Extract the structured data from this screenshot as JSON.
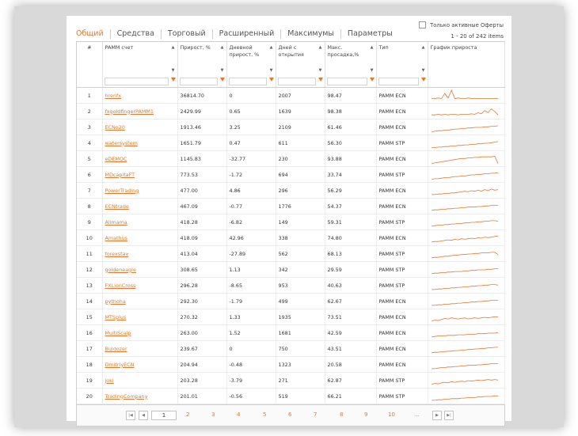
{
  "tabs": [
    "Общий",
    "Средства",
    "Торговый",
    "Расширенный",
    "Максимумы",
    "Параметры"
  ],
  "active_tab": 0,
  "only_active_label": "Только активные Оферты",
  "items_count": "1 - 20 of 242 items",
  "columns": [
    {
      "label": "#"
    },
    {
      "label": "PAMM счет"
    },
    {
      "label": "Прирост, %"
    },
    {
      "label": "Дневной прирост, %"
    },
    {
      "label": "Дней с открытия"
    },
    {
      "label": "Макс. просадка,%"
    },
    {
      "label": "Тип"
    },
    {
      "label": "График прироста"
    }
  ],
  "rows": [
    {
      "n": "1",
      "name": "hrenfx",
      "growth": "36814.70",
      "daily": "0",
      "days": "2007",
      "dd": "98.47",
      "type": "PAMM ECN",
      "spark": [
        5,
        5,
        6,
        5,
        14,
        6,
        20,
        5,
        6,
        5,
        5,
        6,
        5,
        5,
        5,
        5,
        5,
        5,
        5,
        5,
        5
      ]
    },
    {
      "n": "2",
      "name": "fxgoldfingerPAMM1",
      "growth": "2429.99",
      "daily": "0.65",
      "days": "1639",
      "dd": "98.38",
      "type": "PAMM ECN",
      "spark": [
        4,
        4,
        5,
        4,
        5,
        4,
        5,
        5,
        4,
        5,
        5,
        5,
        6,
        5,
        8,
        6,
        12,
        8,
        15,
        10,
        4
      ]
    },
    {
      "n": "3",
      "name": "ECNo20",
      "growth": "1913.46",
      "daily": "3.25",
      "days": "2109",
      "dd": "61.46",
      "type": "PAMM ECN",
      "spark": [
        2,
        3,
        4,
        4,
        5,
        5,
        6,
        7,
        7,
        8,
        8,
        9,
        9,
        10,
        10,
        10,
        11,
        11,
        12,
        12,
        13
      ]
    },
    {
      "n": "4",
      "name": "watersystem",
      "growth": "1651.79",
      "daily": "0.47",
      "days": "611",
      "dd": "56.30",
      "type": "PAMM STP",
      "spark": [
        2,
        2,
        3,
        3,
        4,
        4,
        5,
        5,
        6,
        6,
        7,
        7,
        8,
        8,
        9,
        9,
        10,
        10,
        11,
        12,
        13
      ]
    },
    {
      "n": "5",
      "name": "eDEMOC",
      "growth": "1145.83",
      "daily": "-32.77",
      "days": "230",
      "dd": "93.88",
      "type": "PAMM ECN",
      "spark": [
        2,
        3,
        4,
        5,
        6,
        7,
        8,
        9,
        10,
        11,
        11,
        12,
        12,
        13,
        13,
        14,
        14,
        14,
        14,
        15,
        2
      ]
    },
    {
      "n": "6",
      "name": "MDcapitaFT",
      "growth": "773.53",
      "daily": "-1.72",
      "days": "694",
      "dd": "33.74",
      "type": "PAMM STP",
      "spark": [
        2,
        3,
        3,
        4,
        5,
        5,
        6,
        7,
        7,
        8,
        8,
        9,
        10,
        10,
        11,
        11,
        12,
        12,
        13,
        13,
        14
      ]
    },
    {
      "n": "7",
      "name": "PowerTrading",
      "growth": "477.00",
      "daily": "4.86",
      "days": "296",
      "dd": "56.29",
      "type": "PAMM ECN",
      "spark": [
        3,
        3,
        4,
        4,
        5,
        5,
        6,
        6,
        7,
        8,
        9,
        8,
        10,
        9,
        11,
        9,
        12,
        10,
        13,
        11,
        12
      ]
    },
    {
      "n": "8",
      "name": "ECNtrade",
      "growth": "467.09",
      "daily": "-0.77",
      "days": "1776",
      "dd": "54.37",
      "type": "PAMM ECN",
      "spark": [
        3,
        4,
        4,
        5,
        5,
        6,
        6,
        7,
        7,
        8,
        8,
        9,
        9,
        9,
        10,
        10,
        11,
        11,
        12,
        12,
        12
      ]
    },
    {
      "n": "9",
      "name": "Alimama",
      "growth": "418.28",
      "daily": "-6.82",
      "days": "149",
      "dd": "59.31",
      "type": "PAMM STP",
      "spark": [
        3,
        4,
        5,
        5,
        6,
        6,
        7,
        7,
        8,
        8,
        9,
        9,
        10,
        10,
        11,
        11,
        12,
        12,
        13,
        13,
        12
      ]
    },
    {
      "n": "10",
      "name": "Amathus",
      "growth": "418.09",
      "daily": "42.96",
      "days": "338",
      "dd": "74.80",
      "type": "PAMM ECN",
      "spark": [
        3,
        4,
        4,
        5,
        6,
        7,
        6,
        8,
        7,
        9,
        8,
        9,
        10,
        9,
        11,
        10,
        12,
        11,
        12,
        13,
        14
      ]
    },
    {
      "n": "11",
      "name": "forexstav",
      "growth": "413.04",
      "daily": "-27.89",
      "days": "562",
      "dd": "68.13",
      "type": "PAMM STP",
      "spark": [
        3,
        4,
        4,
        5,
        6,
        6,
        7,
        8,
        8,
        9,
        9,
        10,
        10,
        11,
        11,
        12,
        12,
        12,
        13,
        13,
        9
      ]
    },
    {
      "n": "12",
      "name": "goldeneagle",
      "growth": "308.65",
      "daily": "1.13",
      "days": "342",
      "dd": "29.59",
      "type": "PAMM STP",
      "spark": [
        3,
        4,
        4,
        5,
        5,
        6,
        6,
        7,
        7,
        7,
        8,
        8,
        9,
        9,
        10,
        10,
        10,
        11,
        11,
        12,
        12
      ]
    },
    {
      "n": "13",
      "name": "FXLionCross",
      "growth": "296.28",
      "daily": "-8.65",
      "days": "953",
      "dd": "40.63",
      "type": "PAMM STP",
      "spark": [
        3,
        3,
        4,
        4,
        5,
        5,
        6,
        6,
        7,
        7,
        8,
        8,
        9,
        9,
        10,
        10,
        11,
        11,
        12,
        12,
        11
      ]
    },
    {
      "n": "14",
      "name": "pythoha",
      "growth": "292.30",
      "daily": "-1.79",
      "days": "499",
      "dd": "62.67",
      "type": "PAMM ECN",
      "spark": [
        3,
        3,
        4,
        4,
        5,
        5,
        6,
        6,
        7,
        7,
        8,
        8,
        9,
        9,
        10,
        10,
        11,
        11,
        12,
        12,
        12
      ]
    },
    {
      "n": "15",
      "name": "MTSplus",
      "growth": "270.32",
      "daily": "1.33",
      "days": "1935",
      "dd": "73.51",
      "type": "PAMM ECN",
      "spark": [
        3,
        5,
        4,
        6,
        8,
        7,
        9,
        8,
        7,
        8,
        9,
        7,
        8,
        9,
        8,
        9,
        10,
        9,
        10,
        11,
        11
      ]
    },
    {
      "n": "16",
      "name": "MultiScalp",
      "growth": "263.00",
      "daily": "1.52",
      "days": "1681",
      "dd": "42.59",
      "type": "PAMM ECN",
      "spark": [
        3,
        4,
        5,
        5,
        5,
        6,
        6,
        6,
        7,
        7,
        7,
        8,
        8,
        8,
        9,
        9,
        9,
        10,
        10,
        10,
        11
      ]
    },
    {
      "n": "17",
      "name": "Buldozer",
      "growth": "239.67",
      "daily": "0",
      "days": "750",
      "dd": "43.51",
      "type": "PAMM ECN",
      "spark": [
        3,
        4,
        4,
        5,
        5,
        6,
        6,
        7,
        7,
        8,
        8,
        9,
        9,
        10,
        10,
        11,
        11,
        12,
        12,
        13,
        13
      ]
    },
    {
      "n": "18",
      "name": "DmitriyECN",
      "growth": "204.94",
      "daily": "-0.48",
      "days": "1323",
      "dd": "20.58",
      "type": "PAMM ECN",
      "spark": [
        3,
        3,
        4,
        5,
        5,
        6,
        6,
        7,
        7,
        8,
        8,
        9,
        9,
        9,
        10,
        10,
        11,
        11,
        12,
        12,
        12
      ]
    },
    {
      "n": "19",
      "name": "joki",
      "growth": "203.28",
      "daily": "-3.79",
      "days": "271",
      "dd": "62.87",
      "type": "PAMM STP",
      "spark": [
        3,
        5,
        4,
        6,
        7,
        6,
        8,
        7,
        8,
        9,
        8,
        10,
        9,
        10,
        11,
        10,
        11,
        12,
        11,
        12,
        11
      ]
    },
    {
      "n": "20",
      "name": "TradingCompany",
      "growth": "201.01",
      "daily": "-0.56",
      "days": "519",
      "dd": "66.21",
      "type": "PAMM STP",
      "spark": [
        3,
        3,
        4,
        4,
        5,
        5,
        6,
        6,
        6,
        7,
        7,
        8,
        8,
        8,
        9,
        9,
        10,
        10,
        10,
        11,
        11
      ]
    }
  ],
  "pager": {
    "current": "1",
    "pages": [
      "2",
      "3",
      "4",
      "5",
      "6",
      "7",
      "8",
      "9",
      "10"
    ],
    "ellipsis": "..."
  },
  "colors": {
    "accent": "#e8762d"
  }
}
